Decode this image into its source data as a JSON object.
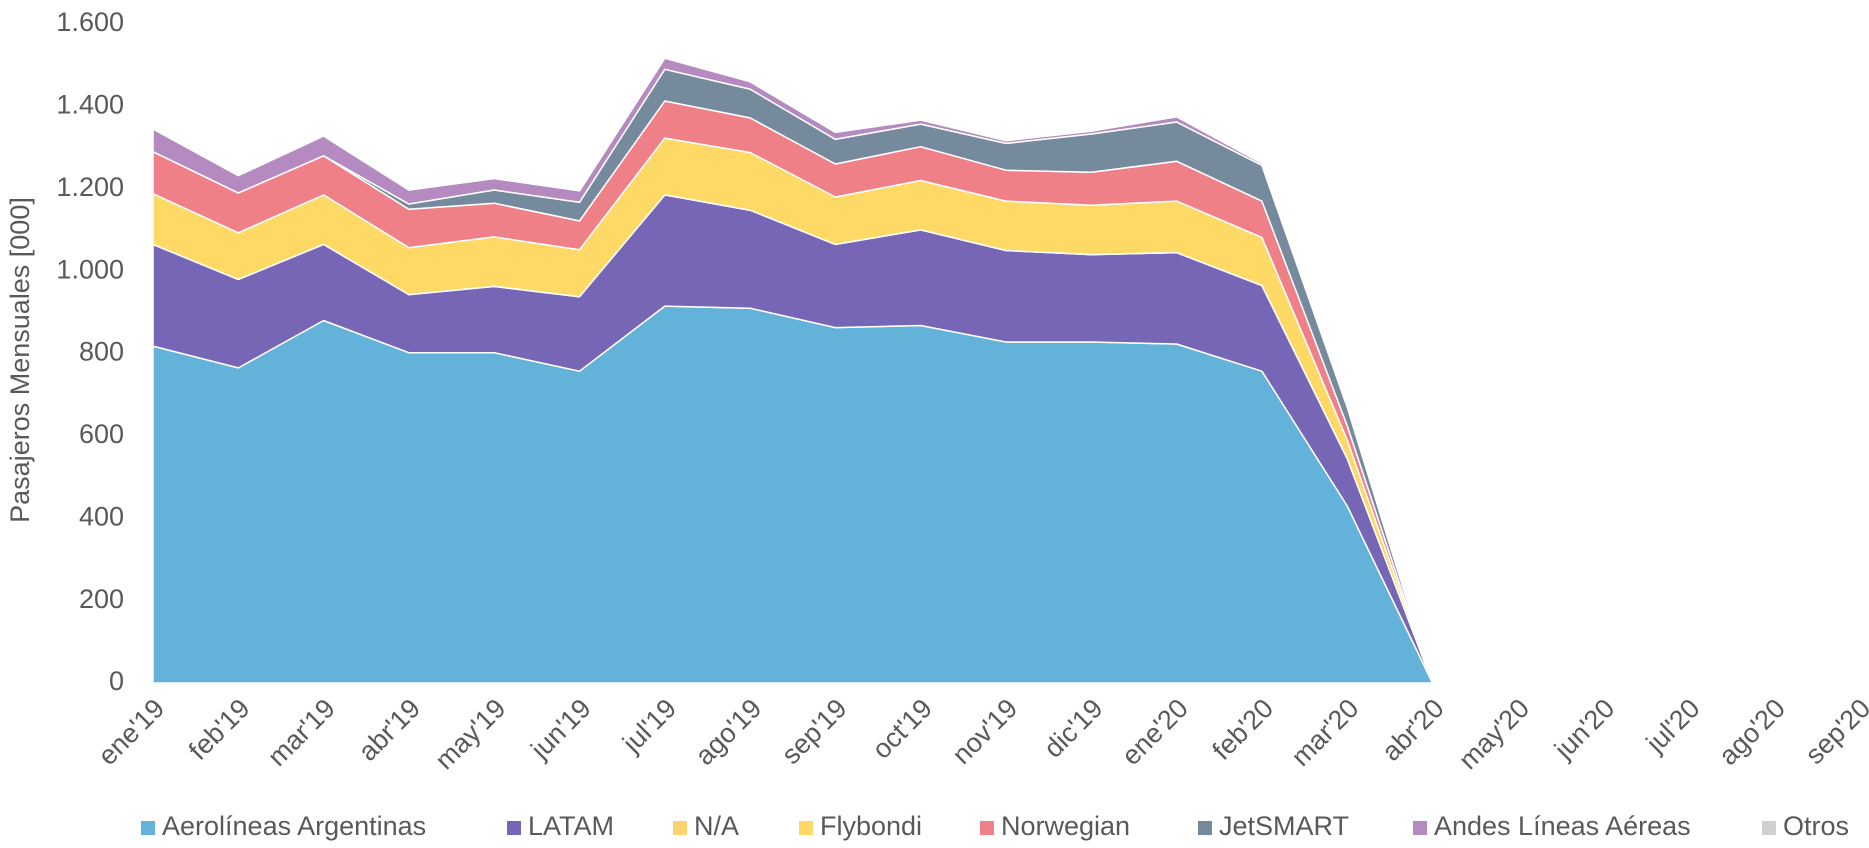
{
  "chart_data": {
    "type": "stacked_area",
    "y_label": "Pasajeros Mensuales [000]",
    "categories": [
      "ene'19",
      "feb'19",
      "mar'19",
      "abr'19",
      "may'19",
      "jun'19",
      "jul'19",
      "ago'19",
      "sep'19",
      "oct'19",
      "nov'19",
      "dic'19",
      "ene'20",
      "feb'20",
      "mar'20",
      "abr'20",
      "may'20",
      "jun'20",
      "jul'20",
      "ago'20",
      "sep'20"
    ],
    "series": [
      {
        "name": "Aerolíneas Argentinas",
        "color": "#63b2d9",
        "values": [
          818,
          765,
          880,
          802,
          802,
          757,
          915,
          910,
          863,
          868,
          828,
          828,
          823,
          757,
          430,
          0,
          null,
          null,
          null,
          null,
          null
        ]
      },
      {
        "name": "LATAM",
        "color": "#7766b5",
        "values": [
          247,
          215,
          185,
          141,
          161,
          181,
          270,
          238,
          202,
          232,
          222,
          212,
          222,
          208,
          115,
          0,
          null,
          null,
          null,
          null,
          null
        ]
      },
      {
        "name": "N/A",
        "color": "#fcd46e",
        "values": [
          0,
          0,
          0,
          0,
          0,
          0,
          0,
          0,
          0,
          0,
          0,
          0,
          0,
          0,
          0,
          0,
          null,
          null,
          null,
          null,
          null
        ]
      },
      {
        "name": "Flybondi",
        "color": "#ffd966",
        "values": [
          123,
          113,
          120,
          114,
          120,
          114,
          138,
          140,
          115,
          120,
          120,
          120,
          125,
          117,
          45,
          0,
          null,
          null,
          null,
          null,
          null
        ]
      },
      {
        "name": "Norwegian",
        "color": "#ef8087",
        "values": [
          102,
          97,
          95,
          93,
          82,
          70,
          90,
          84,
          80,
          82,
          75,
          80,
          97,
          88,
          35,
          0,
          null,
          null,
          null,
          null,
          null
        ]
      },
      {
        "name": "JetSMART",
        "color": "#768a9e",
        "values": [
          0,
          0,
          0,
          13,
          32,
          45,
          77,
          70,
          60,
          55,
          65,
          93,
          95,
          87,
          45,
          0,
          null,
          null,
          null,
          null,
          null
        ]
      },
      {
        "name": "Andes Líneas Aéreas",
        "color": "#b48ac0",
        "values": [
          55,
          42,
          48,
          34,
          28,
          28,
          27,
          18,
          17,
          10,
          7,
          7,
          13,
          5,
          2,
          0,
          null,
          null,
          null,
          null,
          null
        ]
      },
      {
        "name": "Otros",
        "color": "#d0d0d0",
        "values": [
          0,
          0,
          0,
          0,
          0,
          0,
          0,
          0,
          0,
          0,
          0,
          0,
          0,
          0,
          0,
          0,
          null,
          null,
          null,
          null,
          null
        ]
      }
    ],
    "ylim": [
      0,
      1600
    ],
    "yticks": [
      0,
      200,
      400,
      600,
      800,
      {
        "value": 1000,
        "label": "1.000"
      },
      {
        "value": 1200,
        "label": "1.200"
      },
      {
        "value": 1400,
        "label": "1.400"
      },
      {
        "value": 1600,
        "label": "1.600"
      }
    ],
    "legend": "bottom"
  }
}
